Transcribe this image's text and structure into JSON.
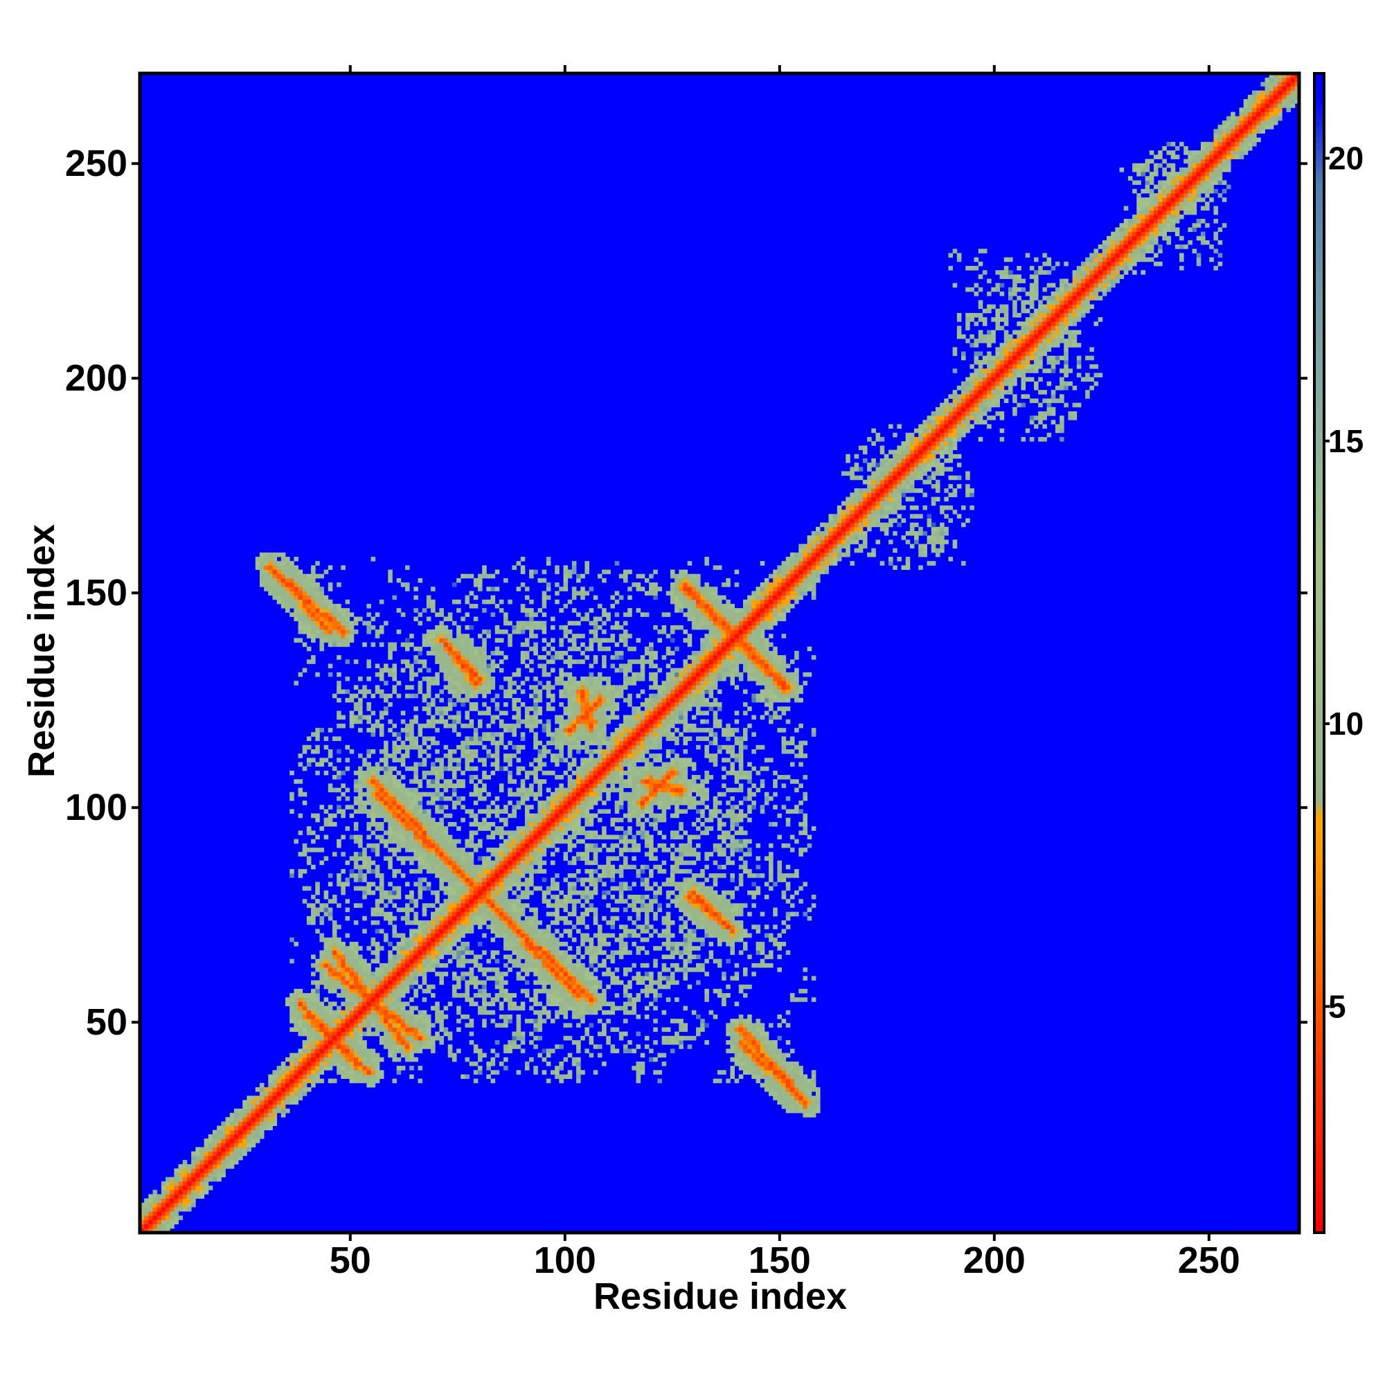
{
  "chart_data": {
    "type": "heatmap",
    "title": "",
    "xlabel": "Residue index",
    "ylabel": "Residue index",
    "xlim": [
      1,
      271
    ],
    "ylim": [
      1,
      271
    ],
    "x_ticks": [
      50,
      100,
      150,
      200,
      250
    ],
    "y_ticks": [
      50,
      100,
      150,
      200,
      250
    ],
    "colorbar": {
      "range": [
        1,
        21.5
      ],
      "ticks": [
        5,
        10,
        15,
        20
      ],
      "colors": {
        "min": "#ff0000",
        "mid_low": "#ff8c00",
        "mid_high": "#a3c38a",
        "max": "#0000ff",
        "high_band": "#4f7fb0"
      }
    },
    "background_value": 21,
    "background_color": "#0000ff",
    "features": [
      {
        "kind": "diagonal",
        "from": 1,
        "to": 271
      },
      {
        "kind": "antidiagonal_strand",
        "start": [
          31,
          156
        ],
        "end": [
          48,
          141
        ]
      },
      {
        "kind": "antidiagonal_strand",
        "start": [
          73,
          137
        ],
        "end": [
          79,
          129
        ]
      },
      {
        "kind": "antidiagonal_strand",
        "start": [
          128,
          151
        ],
        "end": [
          152,
          128
        ]
      },
      {
        "kind": "antidiagonal_strand",
        "start": [
          55,
          106
        ],
        "end": [
          103,
          56
        ]
      },
      {
        "kind": "antidiagonal_strand",
        "start": [
          40,
          51
        ],
        "end": [
          54,
          38
        ]
      },
      {
        "kind": "antidiagonal_strand",
        "start": [
          44,
          63
        ],
        "end": [
          66,
          46
        ]
      },
      {
        "kind": "antidiagonal_strand",
        "start": [
          141,
          45
        ],
        "end": [
          155,
          32
        ]
      },
      {
        "kind": "antidiagonal_strand",
        "start": [
          130,
          80
        ],
        "end": [
          139,
          71
        ]
      },
      {
        "kind": "antidiagonal_strand",
        "start": [
          118,
          106
        ],
        "end": [
          127,
          104
        ]
      },
      {
        "kind": "antidiagonal_strand",
        "start": [
          101,
          118
        ],
        "end": [
          108,
          125
        ]
      },
      {
        "kind": "contact_cloud",
        "x_range": [
          36,
          158
        ],
        "y_range": [
          36,
          158
        ]
      },
      {
        "kind": "contact_cloud",
        "x_range": [
          165,
          195
        ],
        "y_range": [
          155,
          190
        ]
      },
      {
        "kind": "contact_cloud",
        "x_range": [
          190,
          225
        ],
        "y_range": [
          185,
          230
        ]
      },
      {
        "kind": "contact_cloud",
        "x_range": [
          230,
          255
        ],
        "y_range": [
          225,
          255
        ]
      }
    ]
  }
}
